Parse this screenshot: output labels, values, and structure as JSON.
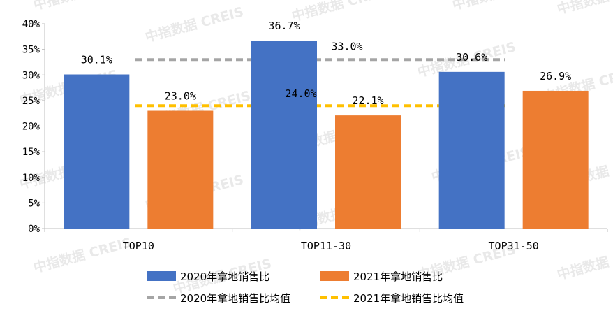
{
  "chart_data": {
    "type": "bar",
    "categories": [
      "TOP10",
      "TOP11-30",
      "TOP31-50"
    ],
    "series": [
      {
        "name": "2020年拿地销售比",
        "values": [
          30.1,
          36.7,
          30.6
        ],
        "labels": [
          "30.1%",
          "36.7%",
          "30.6%"
        ],
        "color": "#4472C4"
      },
      {
        "name": "2021年拿地销售比",
        "values": [
          23.0,
          22.1,
          26.9
        ],
        "labels": [
          "23.0%",
          "22.1%",
          "26.9%"
        ],
        "color": "#ED7D31"
      }
    ],
    "reference_lines": [
      {
        "name": "2020年拿地销售比均值",
        "value": 33.0,
        "label": "33.0%",
        "color": "#A5A5A5",
        "style": "dashed"
      },
      {
        "name": "2021年拿地销售比均值",
        "value": 24.0,
        "label": "24.0%",
        "color": "#FFC000",
        "style": "dashed"
      }
    ],
    "ylim": [
      0,
      40
    ],
    "yticks": [
      "0%",
      "5%",
      "10%",
      "15%",
      "20%",
      "25%",
      "30%",
      "35%",
      "40%"
    ],
    "ytick_values": [
      0,
      5,
      10,
      15,
      20,
      25,
      30,
      35,
      40
    ],
    "grid": false,
    "legend_position": "bottom",
    "watermark": "中指数据 CREIS"
  }
}
